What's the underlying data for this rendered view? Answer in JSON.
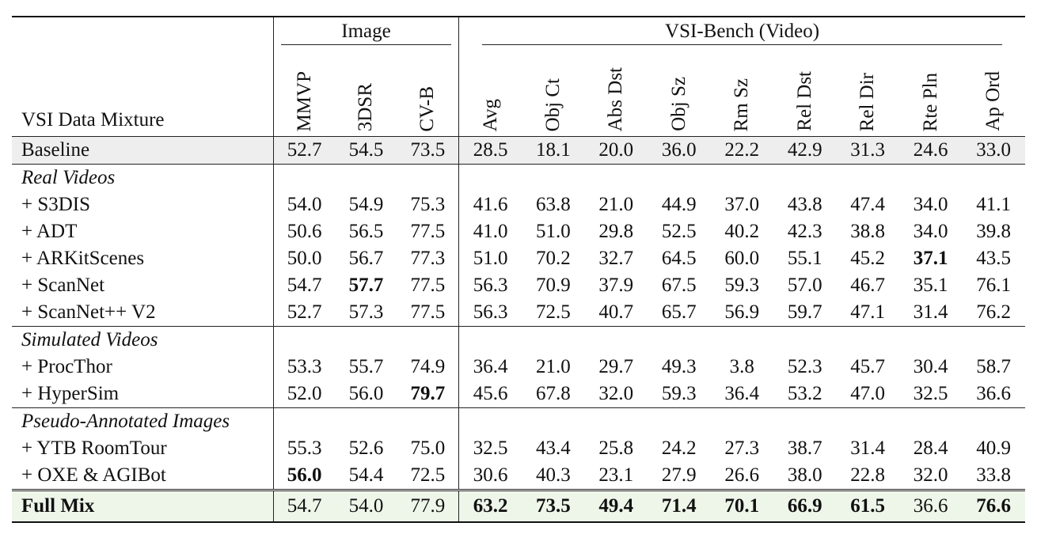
{
  "table": {
    "row_header": "VSI Data Mixture",
    "groups": [
      {
        "label": "Image",
        "columns": [
          "MMVP",
          "3DSR",
          "CV-B"
        ]
      },
      {
        "label": "VSI-Bench (Video)",
        "columns": [
          "Avg",
          "Obj Ct",
          "Abs Dst",
          "Obj Sz",
          "Rm Sz",
          "Rel Dst",
          "Rel Dir",
          "Rte Pln",
          "Ap Ord"
        ]
      }
    ],
    "baseline": {
      "label": "Baseline",
      "cells": [
        "52.7",
        "54.5",
        "73.5",
        "28.5",
        "18.1",
        "20.0",
        "36.0",
        "22.2",
        "42.9",
        "31.3",
        "24.6",
        "33.0"
      ]
    },
    "sections": [
      {
        "title": "Real Videos",
        "rows": [
          {
            "label": "+ S3DIS",
            "cells": [
              "54.0",
              "54.9",
              "75.3",
              "41.6",
              "63.8",
              "21.0",
              "44.9",
              "37.0",
              "43.8",
              "47.4",
              "34.0",
              "41.1"
            ]
          },
          {
            "label": "+ ADT",
            "cells": [
              "50.6",
              "56.5",
              "77.5",
              "41.0",
              "51.0",
              "29.8",
              "52.5",
              "40.2",
              "42.3",
              "38.8",
              "34.0",
              "39.8"
            ]
          },
          {
            "label": "+ ARKitScenes",
            "cells": [
              "50.0",
              "56.7",
              "77.3",
              "51.0",
              "70.2",
              "32.7",
              "64.5",
              "60.0",
              "55.1",
              "45.2",
              "37.1",
              "43.5"
            ],
            "bold": [
              10
            ]
          },
          {
            "label": "+ ScanNet",
            "cells": [
              "54.7",
              "57.7",
              "77.5",
              "56.3",
              "70.9",
              "37.9",
              "67.5",
              "59.3",
              "57.0",
              "46.7",
              "35.1",
              "76.1"
            ],
            "bold": [
              1
            ]
          },
          {
            "label": "+ ScanNet++ V2",
            "cells": [
              "52.7",
              "57.3",
              "77.5",
              "56.3",
              "72.5",
              "40.7",
              "65.7",
              "56.9",
              "59.7",
              "47.1",
              "31.4",
              "76.2"
            ]
          }
        ]
      },
      {
        "title": "Simulated Videos",
        "rows": [
          {
            "label": "+ ProcThor",
            "cells": [
              "53.3",
              "55.7",
              "74.9",
              "36.4",
              "21.0",
              "29.7",
              "49.3",
              "3.8",
              "52.3",
              "45.7",
              "30.4",
              "58.7"
            ]
          },
          {
            "label": "+ HyperSim",
            "cells": [
              "52.0",
              "56.0",
              "79.7",
              "45.6",
              "67.8",
              "32.0",
              "59.3",
              "36.4",
              "53.2",
              "47.0",
              "32.5",
              "36.6"
            ],
            "bold": [
              2
            ]
          }
        ]
      },
      {
        "title": "Pseudo-Annotated Images",
        "rows": [
          {
            "label": "+ YTB RoomTour",
            "cells": [
              "55.3",
              "52.6",
              "75.0",
              "32.5",
              "43.4",
              "25.8",
              "24.2",
              "27.3",
              "38.7",
              "31.4",
              "28.4",
              "40.9"
            ]
          },
          {
            "label": "+ OXE & AGIBot",
            "cells": [
              "56.0",
              "54.4",
              "72.5",
              "30.6",
              "40.3",
              "23.1",
              "27.9",
              "26.6",
              "38.0",
              "22.8",
              "32.0",
              "33.8"
            ],
            "bold": [
              0
            ]
          }
        ]
      }
    ],
    "full": {
      "label": "Full Mix",
      "cells": [
        "54.7",
        "54.0",
        "77.9",
        "63.2",
        "73.5",
        "49.4",
        "71.4",
        "70.1",
        "66.9",
        "61.5",
        "36.6",
        "76.6"
      ],
      "bold": [
        3,
        4,
        5,
        6,
        7,
        8,
        9,
        11
      ]
    }
  }
}
